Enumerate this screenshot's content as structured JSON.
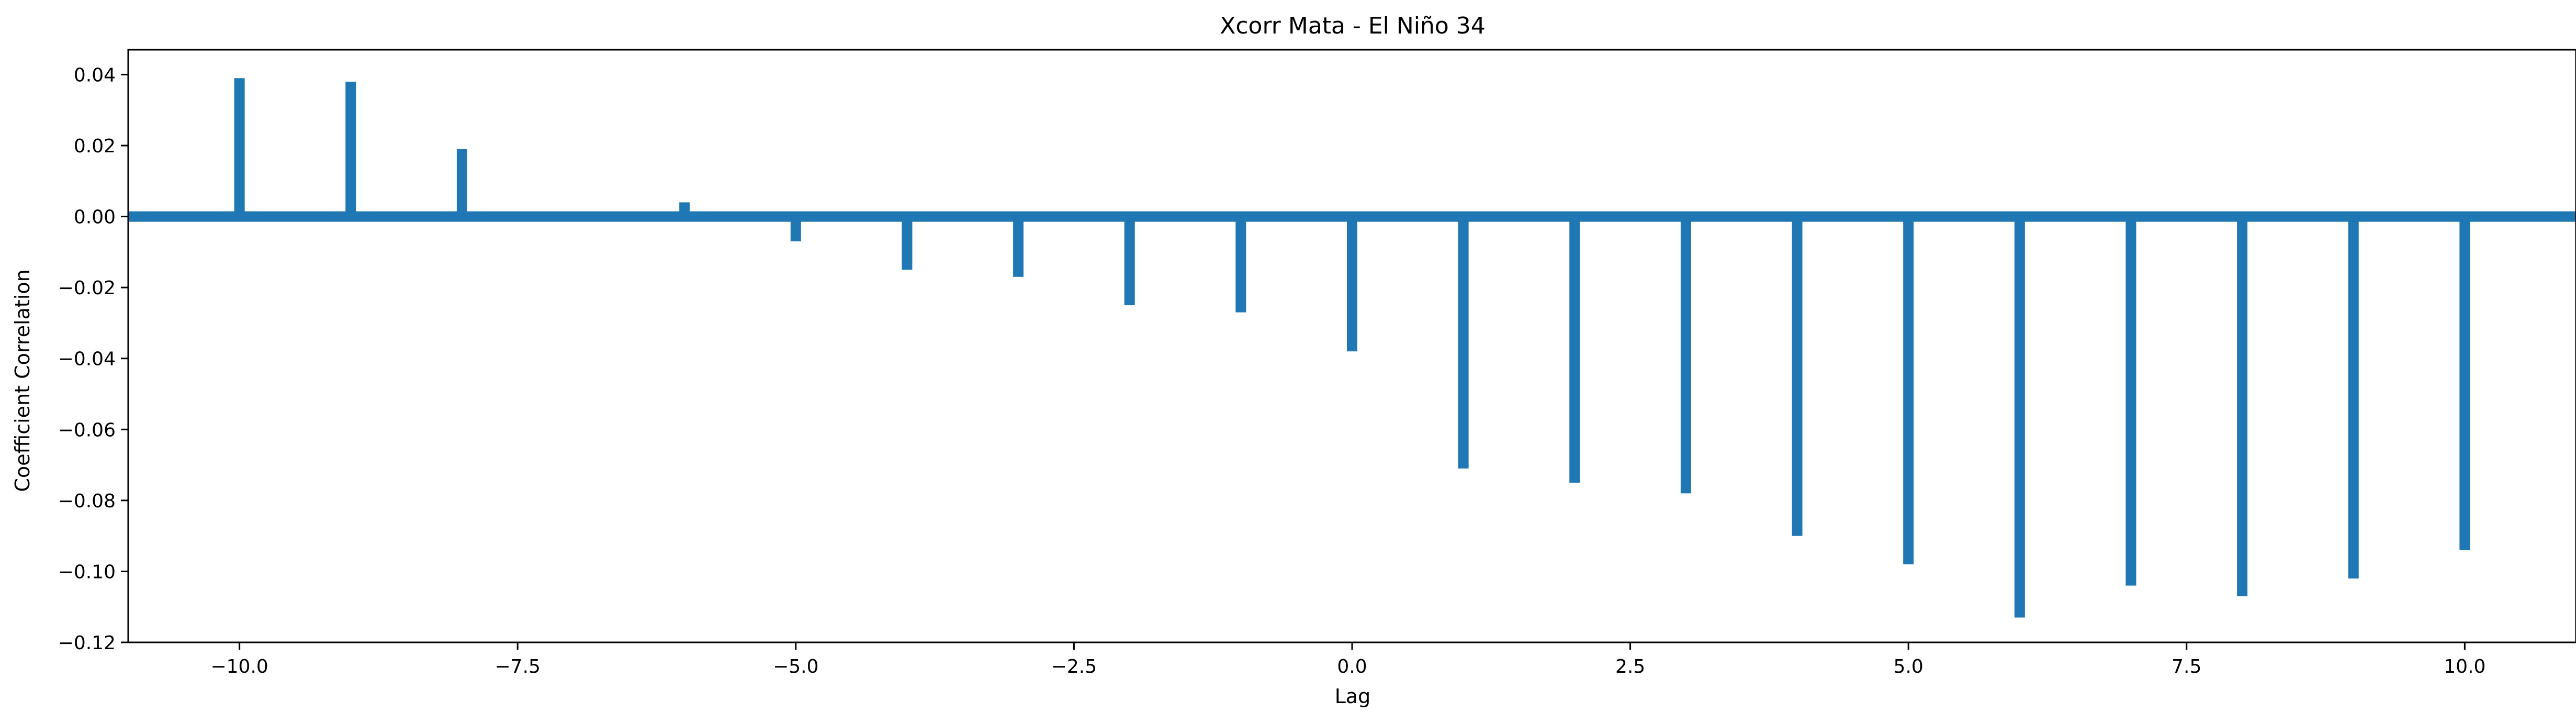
{
  "chart_data": {
    "type": "bar",
    "title": "Xcorr Mata - El Niño 34",
    "xlabel": "Lag",
    "ylabel": "Coefficient Correlation",
    "xlim": [
      -11,
      11
    ],
    "ylim": [
      -0.12,
      0.047
    ],
    "x": [
      -10,
      -9,
      -8,
      -6,
      -5,
      -4,
      -3,
      -2,
      -1,
      0,
      1,
      2,
      3,
      4,
      5,
      6,
      7,
      8,
      9,
      10
    ],
    "values": [
      0.039,
      0.038,
      0.019,
      0.004,
      -0.007,
      -0.015,
      -0.017,
      -0.025,
      -0.027,
      -0.038,
      -0.071,
      -0.075,
      -0.078,
      -0.09,
      -0.098,
      -0.113,
      -0.104,
      -0.107,
      -0.102,
      -0.094
    ],
    "xticks": [
      -10,
      -7.5,
      -5,
      -2.5,
      0,
      2.5,
      5,
      7.5,
      10
    ],
    "xtick_labels": [
      "−10.0",
      "−7.5",
      "−5.0",
      "−2.5",
      "0.0",
      "2.5",
      "5.0",
      "7.5",
      "10.0"
    ],
    "yticks": [
      0.04,
      0.02,
      0.0,
      -0.02,
      -0.04,
      -0.06,
      -0.08,
      -0.1,
      -0.12
    ],
    "ytick_labels": [
      "0.04",
      "0.02",
      "0.00",
      "−0.02",
      "−0.04",
      "−0.06",
      "−0.08",
      "−0.10",
      "−0.12"
    ],
    "zero_line": true,
    "grid": false,
    "bar_color": "#1f77b4"
  }
}
